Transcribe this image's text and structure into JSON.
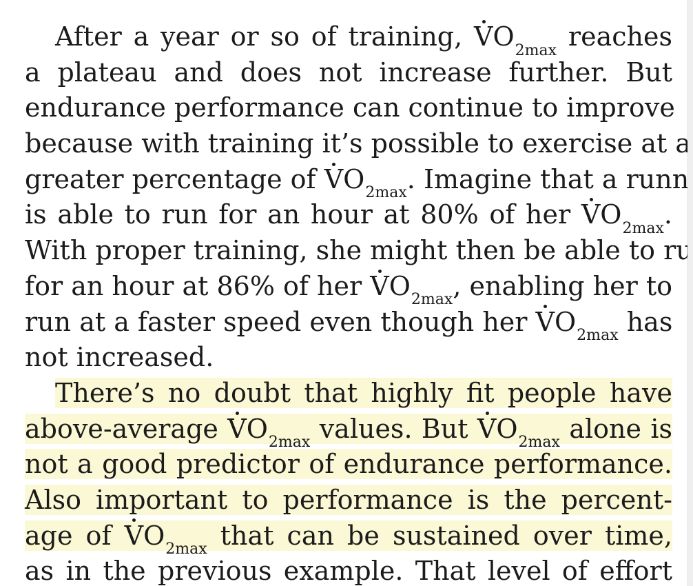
{
  "symbol": {
    "base_letter": "V",
    "rest": "O",
    "subscript": "2max"
  },
  "paragraph1": {
    "line1": [
      "After a year or so of training, ",
      " reaches"
    ],
    "line2": "a plateau and does not increase further. But",
    "line3": "endurance performance can continue to improve",
    "line4": "because with training it’s possible to exercise at a",
    "line5": [
      "greater percentage of ",
      ". Imagine that a runner"
    ],
    "line6": [
      "is able to run for an hour at 80% of her ",
      "."
    ],
    "line7": "With proper training, she might then be able to run",
    "line8": [
      "for an hour at 86% of her ",
      ", enabling her to"
    ],
    "line9": [
      "run at a faster speed even though her ",
      " has"
    ],
    "line10": "not increased."
  },
  "paragraph2": {
    "line1": "There’s no doubt that highly fit people have",
    "line2": [
      "above-average ",
      " values. But ",
      " alone is"
    ],
    "line3": "not a good predictor of endurance performance.",
    "line4": "Also important to performance is the percent-",
    "line5": [
      "age of ",
      " that can be sustained over time,"
    ],
    "line6": "as in the previous example. That level of effort"
  },
  "colors": {
    "highlight": "#fbf8d6",
    "text": "#1b1b1b",
    "page": "#ffffff"
  }
}
